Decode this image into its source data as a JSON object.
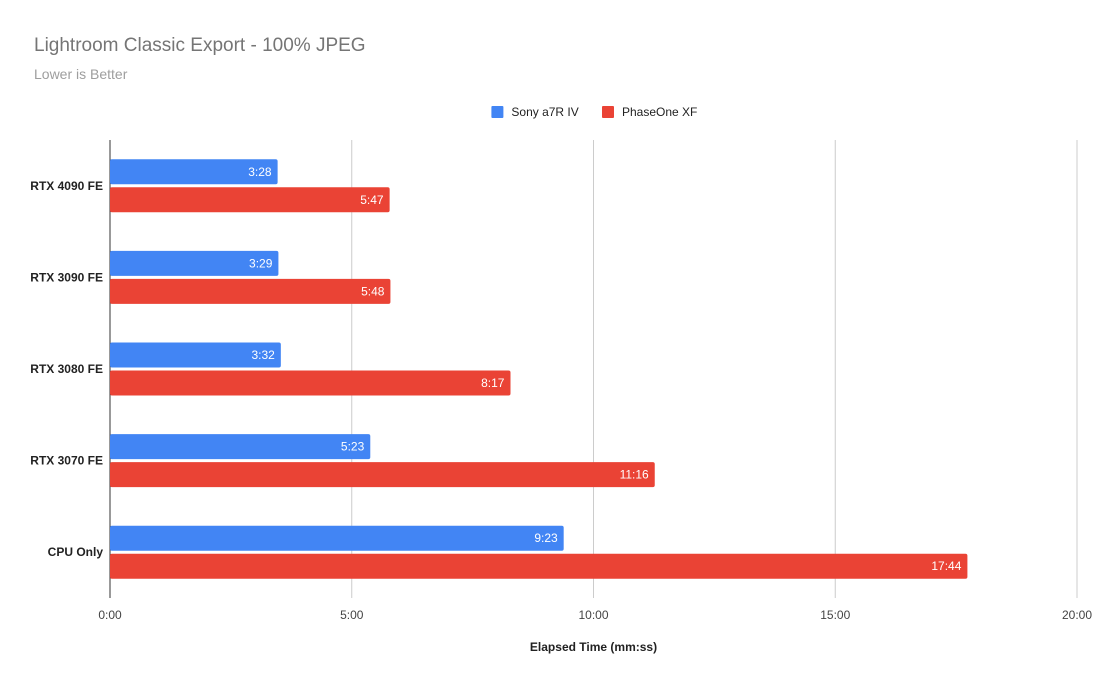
{
  "chart_data": {
    "type": "bar",
    "orientation": "horizontal",
    "title": "Lightroom Classic Export - 100% JPEG",
    "subtitle": "Lower is Better",
    "xlabel": "Elapsed Time (mm:ss)",
    "ylabel": "",
    "categories": [
      "RTX 4090 FE",
      "RTX 3090 FE",
      "RTX 3080 FE",
      "RTX 3070 FE",
      "CPU Only"
    ],
    "series": [
      {
        "name": "Sony a7R IV",
        "color": "#4285f4",
        "values": [
          208,
          209,
          212,
          323,
          563
        ],
        "labels": [
          "3:28",
          "3:29",
          "3:32",
          "5:23",
          "9:23"
        ]
      },
      {
        "name": "PhaseOne XF",
        "color": "#ea4335",
        "values": [
          347,
          348,
          497,
          676,
          1064
        ],
        "labels": [
          "5:47",
          "5:48",
          "8:17",
          "11:16",
          "17:44"
        ]
      }
    ],
    "xlim": [
      0,
      1200
    ],
    "xticks": [
      0,
      300,
      600,
      900,
      1200
    ],
    "xtick_labels": [
      "0:00",
      "5:00",
      "10:00",
      "15:00",
      "20:00"
    ],
    "grid": true,
    "legend_position": "top"
  }
}
